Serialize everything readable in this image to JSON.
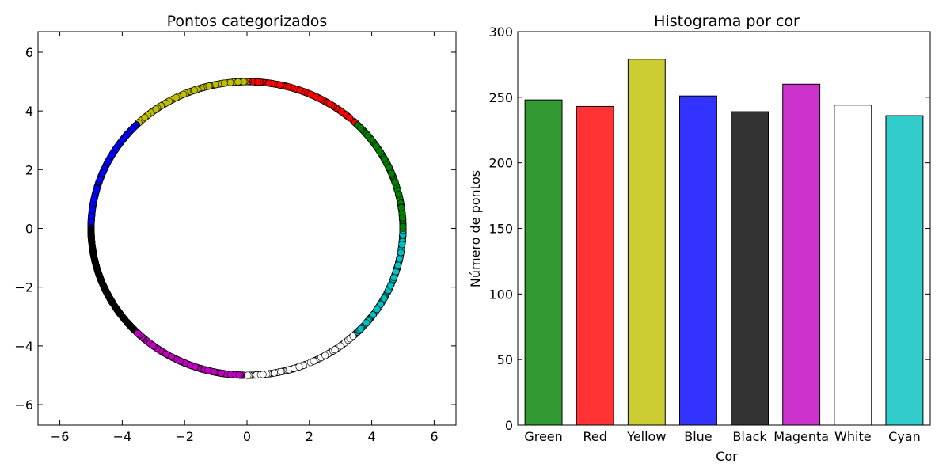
{
  "chart_data": [
    {
      "type": "scatter",
      "title": "Pontos categorizados",
      "xlabel": "",
      "ylabel": "",
      "xlim": [
        -6.7,
        6.7
      ],
      "ylim": [
        -6.7,
        6.7
      ],
      "xticks": [
        -6,
        -4,
        -2,
        0,
        2,
        4,
        6
      ],
      "yticks": [
        -6,
        -4,
        -2,
        0,
        2,
        4,
        6
      ],
      "xtick_labels": [
        "−6",
        "−4",
        "−2",
        "0",
        "2",
        "4",
        "6"
      ],
      "ytick_labels": [
        "−6",
        "−4",
        "−2",
        "0",
        "2",
        "4",
        "6"
      ],
      "radius": 5,
      "marker_edge_color": "#000000",
      "segments": [
        {
          "color": "#ff0000",
          "angle_start_deg": 45,
          "angle_end_deg": 90,
          "count": 243
        },
        {
          "color": "#bfbf00",
          "angle_start_deg": 90,
          "angle_end_deg": 135,
          "count": 279
        },
        {
          "color": "#0000ff",
          "angle_start_deg": 135,
          "angle_end_deg": 180,
          "count": 251
        },
        {
          "color": "#000000",
          "angle_start_deg": 180,
          "angle_end_deg": 225,
          "count": 239
        },
        {
          "color": "#bf00bf",
          "angle_start_deg": 225,
          "angle_end_deg": 270,
          "count": 260
        },
        {
          "color": "#ffffff",
          "angle_start_deg": 270,
          "angle_end_deg": 315,
          "count": 244
        },
        {
          "color": "#00bfbf",
          "angle_start_deg": 315,
          "angle_end_deg": 360,
          "count": 236
        },
        {
          "color": "#008000",
          "angle_start_deg": 0,
          "angle_end_deg": 45,
          "count": 248
        }
      ]
    },
    {
      "type": "bar",
      "title": "Histograma por cor",
      "xlabel": "Cor",
      "ylabel": "Número de pontos",
      "ylim": [
        0,
        300
      ],
      "yticks": [
        0,
        50,
        100,
        150,
        200,
        250,
        300
      ],
      "categories": [
        "Green",
        "Red",
        "Yellow",
        "Blue",
        "Black",
        "Magenta",
        "White",
        "Cyan"
      ],
      "values": [
        248,
        243,
        279,
        251,
        239,
        260,
        244,
        236
      ],
      "colors": [
        "#339933",
        "#ff3333",
        "#cccc33",
        "#3333ff",
        "#333333",
        "#cc33cc",
        "#ffffff",
        "#33cccc"
      ],
      "bar_edge_color": "#000000"
    }
  ]
}
